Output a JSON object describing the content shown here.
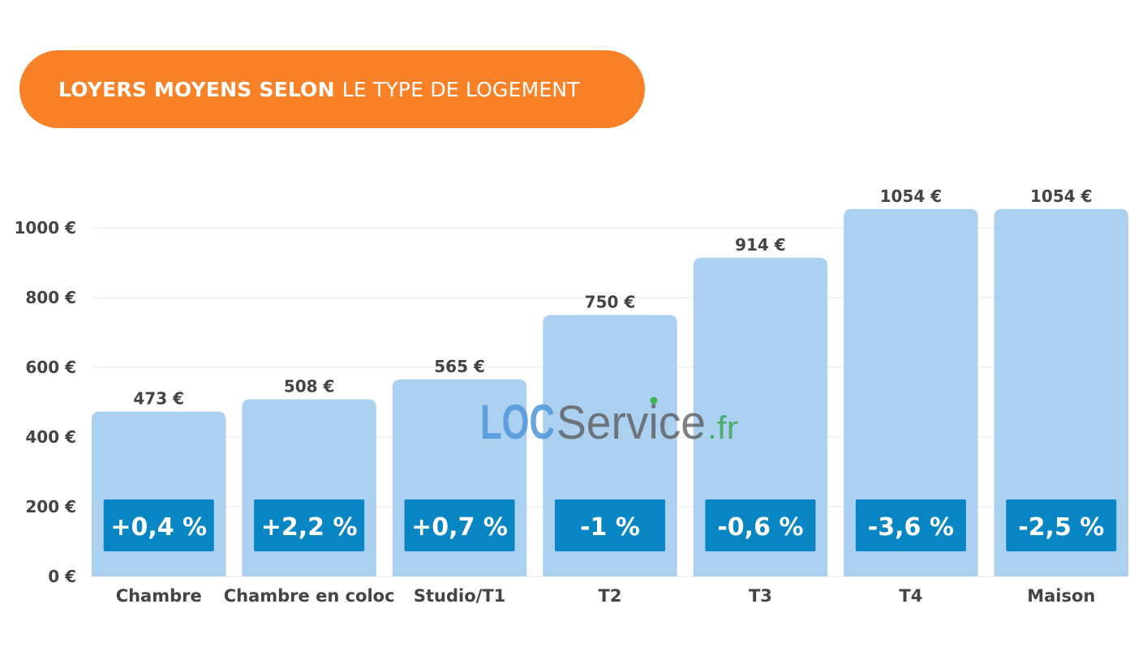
{
  "title": {
    "bold": "LOYERS MOYENS SELON",
    "light": "LE TYPE DE LOGEMENT"
  },
  "watermark": {
    "loc": "LOC",
    "service": "Service",
    "tld": ".fr"
  },
  "colors": {
    "accent": "#f98128",
    "bar": "#acd0f0",
    "badge": "#0786c3",
    "text": "#444444"
  },
  "chart_data": {
    "type": "bar",
    "title": "LOYERS MOYENS SELON LE TYPE DE LOGEMENT",
    "categories": [
      "Chambre",
      "Chambre en coloc",
      "Studio/T1",
      "T2",
      "T3",
      "T4",
      "Maison"
    ],
    "values": [
      473,
      508,
      565,
      750,
      914,
      1054,
      1054
    ],
    "value_labels": [
      "473 €",
      "508 €",
      "565 €",
      "750 €",
      "914 €",
      "1054 €",
      "1054 €"
    ],
    "change_labels": [
      "+0,4 %",
      "+2,2 %",
      "+0,7 %",
      "-1 %",
      "-0,6 %",
      "-3,6 %",
      "-2,5 %"
    ],
    "ylim": [
      0,
      1000
    ],
    "yticks": [
      0,
      200,
      400,
      600,
      800,
      1000
    ],
    "ytick_labels": [
      "0 €",
      "200 €",
      "400 €",
      "600 €",
      "800 €",
      "1000 €"
    ],
    "xlabel": "",
    "ylabel": "",
    "grid": true
  }
}
